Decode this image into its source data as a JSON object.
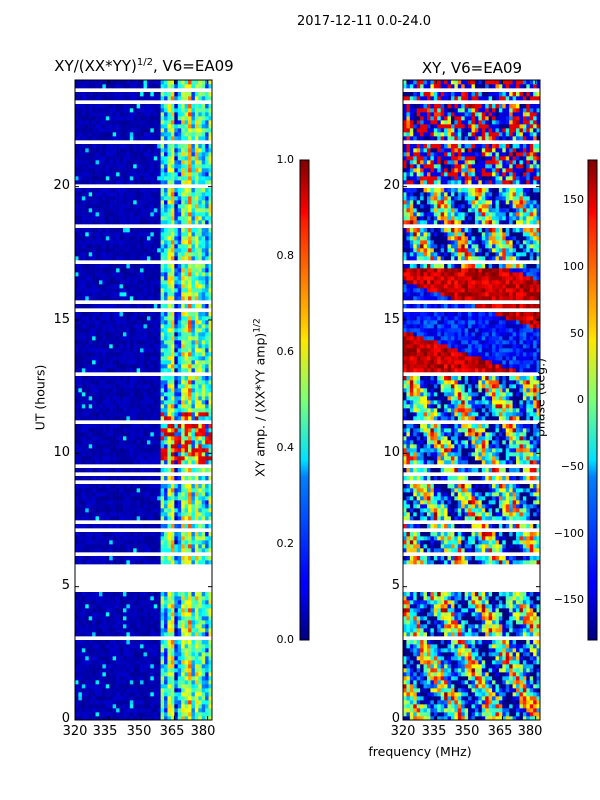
{
  "chart_data": {
    "suptitle": "2017-12-11 0.0-24.0",
    "xlabel": "frequency (MHz)",
    "panels": [
      {
        "id": "amp",
        "type": "heatmap",
        "title_main": "XY/(XX*YY)",
        "title_exp": "1/2",
        "title_tail": ", V6=EA09",
        "ylabel": "UT (hours)",
        "xlim": [
          320,
          382
        ],
        "ylim": [
          0,
          24
        ],
        "xticks": [
          "320",
          "335",
          "350",
          "365",
          "380"
        ],
        "yticks": [
          "0",
          "5",
          "10",
          "15",
          "20"
        ],
        "colorbar": {
          "label_main": "XY amp. / (XX*YY amp)",
          "label_exp": "1/2",
          "ticks": [
            "0.0",
            "0.2",
            "0.4",
            "0.6",
            "0.8",
            "1.0"
          ],
          "range": [
            0,
            1
          ]
        }
      },
      {
        "id": "phase",
        "type": "heatmap",
        "title_main": "XY, V6=EA09",
        "ylabel": "",
        "xlim": [
          320,
          382
        ],
        "ylim": [
          0,
          24
        ],
        "xticks": [
          "320",
          "335",
          "350",
          "365",
          "380"
        ],
        "yticks": [
          "0",
          "5",
          "10",
          "15",
          "20"
        ],
        "colorbar": {
          "label_main": "phase (deg.)",
          "ticks": [
            "150",
            "100",
            "50",
            "0",
            "−50",
            "−100",
            "−150"
          ],
          "tick_values": [
            150,
            100,
            50,
            0,
            -50,
            -100,
            -150
          ],
          "range": [
            -180,
            180
          ]
        }
      }
    ],
    "flagged_gaps_ut": [
      [
        5.0,
        5.9
      ],
      [
        6.1,
        6.3
      ]
    ],
    "colormap": "jet"
  }
}
